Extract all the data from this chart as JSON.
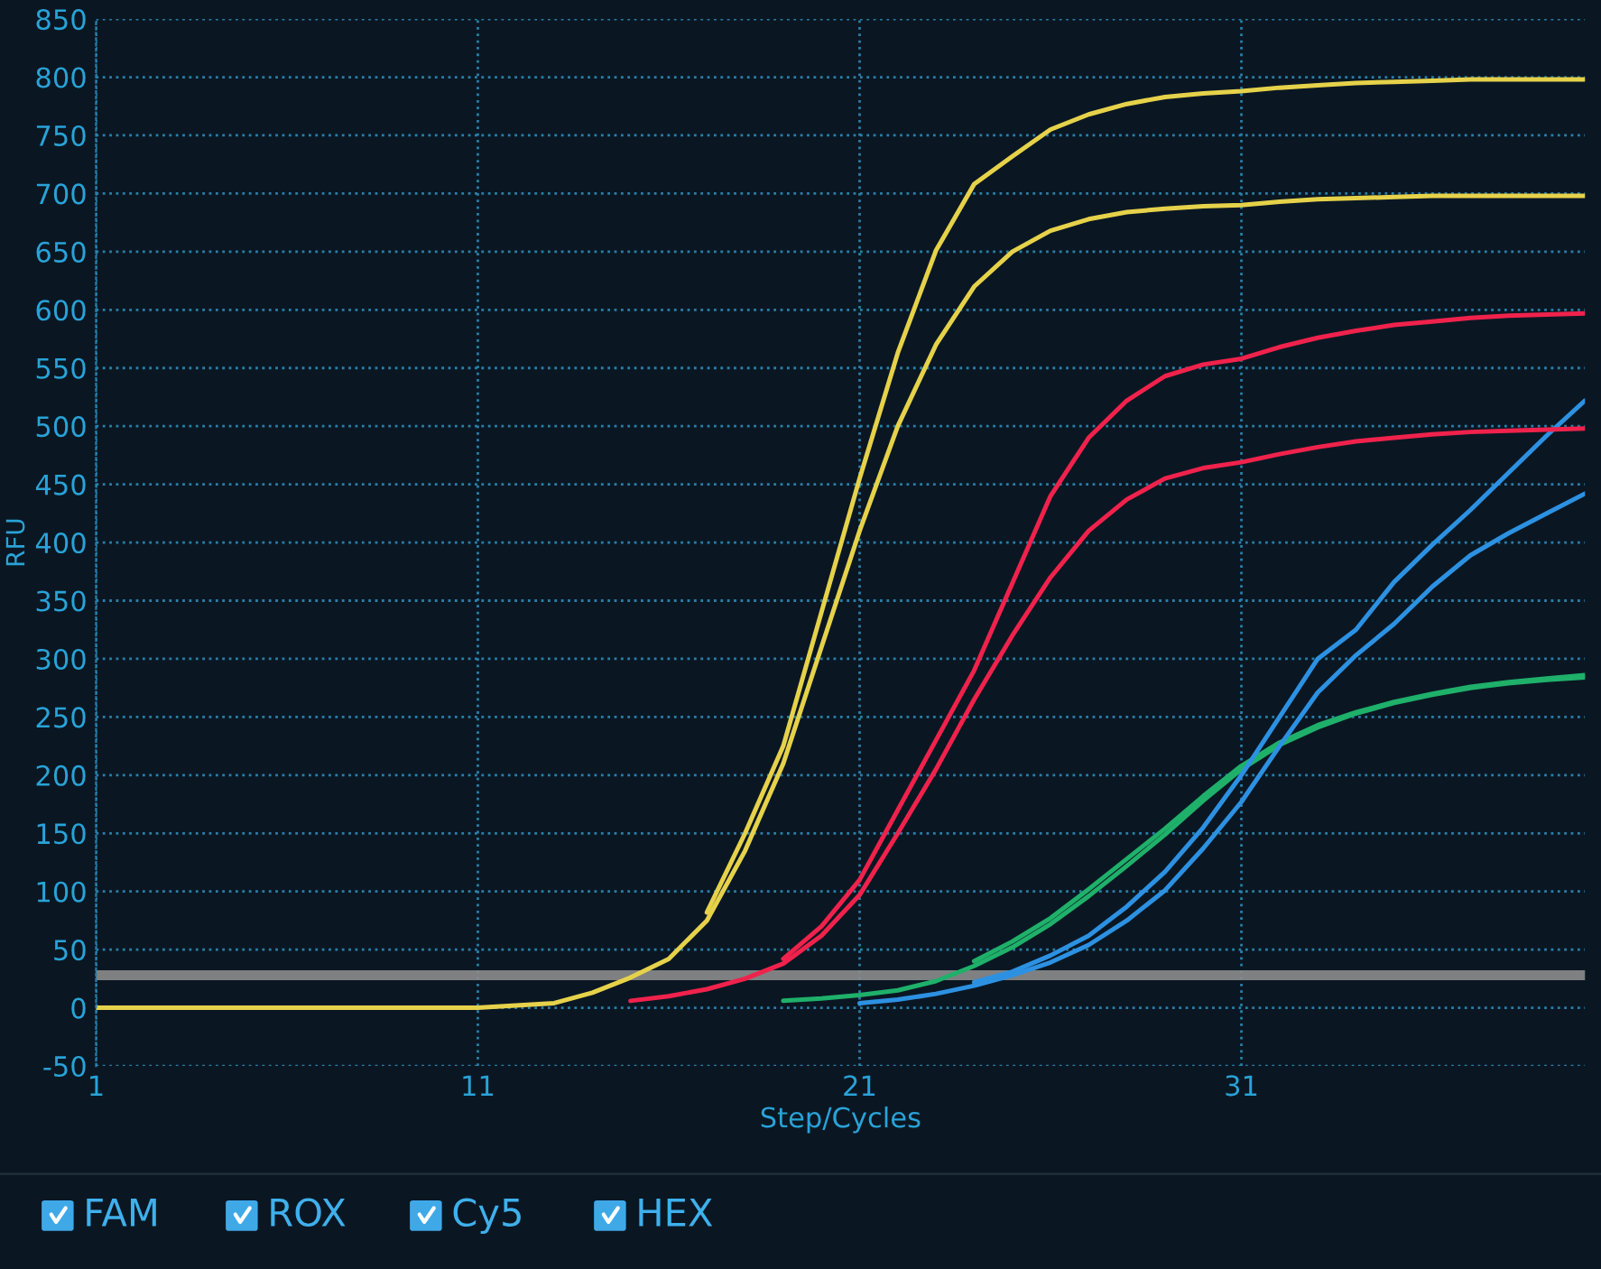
{
  "chart_data": {
    "type": "line",
    "xlabel": "Step/Cycles",
    "ylabel": "RFU",
    "x": [
      1,
      2,
      3,
      4,
      5,
      6,
      7,
      8,
      9,
      10,
      11,
      12,
      13,
      14,
      15,
      16,
      17,
      18,
      19,
      20,
      21,
      22,
      23,
      24,
      25,
      26,
      27,
      28,
      29,
      30,
      31,
      32,
      33,
      34,
      35,
      36,
      37,
      38,
      39,
      40
    ],
    "xlim": [
      1,
      40
    ],
    "xticks": [
      1,
      11,
      21,
      31
    ],
    "ylim": [
      -50,
      850
    ],
    "yticks": [
      -50,
      0,
      50,
      100,
      150,
      200,
      250,
      300,
      350,
      400,
      450,
      500,
      550,
      600,
      650,
      700,
      750,
      800,
      850
    ],
    "grid": true,
    "legend": false,
    "marker": "none",
    "line_style": "solid",
    "ref_lines": [
      {
        "axis": "y",
        "value": 28,
        "color": "#8c8c8c"
      }
    ],
    "annotations": [
      "FAM",
      "ROX",
      "Cy5",
      "HEX"
    ],
    "series": [
      {
        "color": "#1fb06a",
        "values": [
          null,
          null,
          null,
          null,
          null,
          null,
          null,
          null,
          null,
          null,
          null,
          null,
          null,
          null,
          null,
          null,
          null,
          null,
          null,
          null,
          null,
          null,
          null,
          40,
          57,
          77,
          102,
          128,
          154,
          182,
          208,
          228,
          243,
          254,
          263,
          270,
          276,
          280,
          283,
          286
        ]
      },
      {
        "color": "#1fb06a",
        "values": [
          null,
          null,
          null,
          null,
          null,
          null,
          null,
          null,
          null,
          null,
          null,
          null,
          null,
          null,
          null,
          null,
          null,
          null,
          6,
          8,
          11,
          15,
          23,
          36,
          52,
          72,
          96,
          122,
          149,
          178,
          205,
          226,
          241,
          253,
          262,
          269,
          275,
          279,
          282,
          284
        ]
      },
      {
        "color": "#2d91e2",
        "values": [
          null,
          null,
          null,
          null,
          null,
          null,
          null,
          null,
          null,
          null,
          null,
          null,
          null,
          null,
          null,
          null,
          null,
          null,
          null,
          null,
          null,
          null,
          null,
          22,
          31,
          45,
          62,
          87,
          117,
          155,
          200,
          250,
          300,
          325,
          366,
          398,
          428,
          460,
          492,
          522
        ]
      },
      {
        "color": "#2d91e2",
        "values": [
          null,
          null,
          null,
          null,
          null,
          null,
          null,
          null,
          null,
          null,
          null,
          null,
          null,
          null,
          null,
          null,
          null,
          null,
          null,
          null,
          4,
          7,
          12,
          19,
          28,
          39,
          54,
          75,
          101,
          137,
          177,
          225,
          271,
          303,
          330,
          362,
          389,
          408,
          425,
          442
        ]
      },
      {
        "color": "#f0224c",
        "values": [
          null,
          null,
          null,
          null,
          null,
          null,
          null,
          null,
          null,
          null,
          null,
          null,
          null,
          null,
          null,
          null,
          null,
          null,
          42,
          70,
          110,
          170,
          230,
          290,
          365,
          440,
          490,
          522,
          543,
          553,
          558,
          568,
          576,
          582,
          587,
          590,
          593,
          595,
          596,
          597
        ]
      },
      {
        "color": "#f0224c",
        "values": [
          null,
          null,
          null,
          null,
          null,
          null,
          null,
          null,
          null,
          null,
          null,
          null,
          null,
          null,
          6,
          10,
          16,
          25,
          38,
          62,
          97,
          150,
          205,
          265,
          320,
          370,
          410,
          437,
          455,
          464,
          469,
          476,
          482,
          487,
          490,
          493,
          495,
          496,
          497,
          498
        ]
      },
      {
        "color": "#e6d24a",
        "values": [
          null,
          null,
          null,
          null,
          null,
          null,
          null,
          null,
          null,
          null,
          null,
          null,
          null,
          null,
          null,
          null,
          82,
          150,
          225,
          340,
          455,
          563,
          651,
          708,
          732,
          755,
          768,
          777,
          783,
          786,
          788,
          791,
          793,
          795,
          796,
          797,
          798,
          798,
          798,
          798
        ]
      },
      {
        "color": "#e6d24a",
        "values": [
          0,
          0,
          0,
          0,
          0,
          0,
          0,
          0,
          0,
          0,
          0,
          2,
          4,
          13,
          26,
          42,
          75,
          135,
          210,
          310,
          410,
          500,
          570,
          620,
          650,
          668,
          678,
          684,
          687,
          689,
          690,
          693,
          695,
          696,
          697,
          698,
          698,
          698,
          698,
          698
        ]
      }
    ]
  }
}
